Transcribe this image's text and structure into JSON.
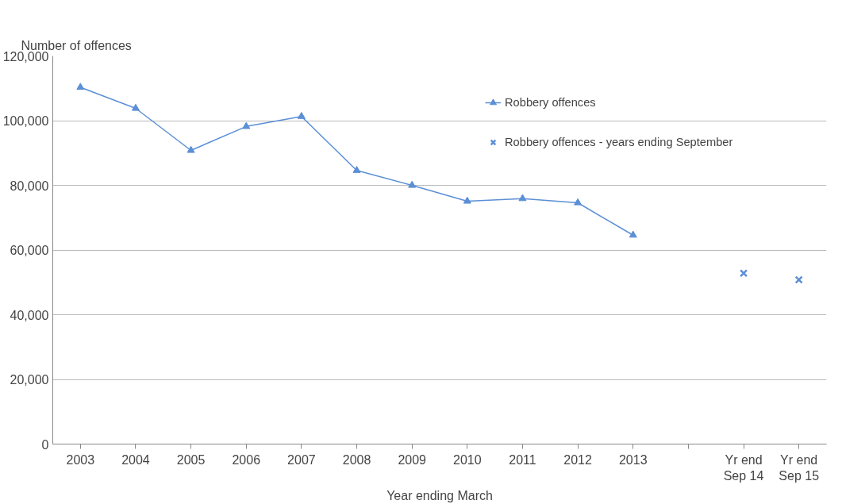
{
  "chart_data": {
    "type": "line",
    "xlabel": "Year ending March",
    "ylabel": "Number of offences",
    "categories": [
      "2003",
      "2004",
      "2005",
      "2006",
      "2007",
      "2008",
      "2009",
      "2010",
      "2011",
      "2012",
      "2013",
      null,
      "Yr end\nSep 14",
      "Yr end\nSep 15"
    ],
    "series": [
      {
        "name": "Robbery offences",
        "color": "#5b8fd6",
        "marker": "triangle",
        "values": [
          110300,
          103800,
          90800,
          98200,
          101300,
          84600,
          80000,
          75100,
          75900,
          74600,
          64600,
          null,
          null,
          null
        ]
      },
      {
        "name": "Robbery offences - years ending September",
        "color": "#5b8fd6",
        "type": "scatter",
        "marker": "cross",
        "values": [
          null,
          null,
          null,
          null,
          null,
          null,
          null,
          null,
          null,
          null,
          null,
          null,
          52800,
          50800
        ]
      }
    ],
    "ylim": [
      0,
      120000
    ],
    "yticks": [
      0,
      {
        "value": 20000,
        "label": "20,000"
      },
      {
        "value": 40000,
        "label": "40,000"
      },
      {
        "value": 60000,
        "label": "60,000"
      },
      {
        "value": 80000,
        "label": "80,000"
      },
      {
        "value": 100000,
        "label": "100,000"
      },
      {
        "value": 120000,
        "label": "120,000"
      }
    ],
    "grid": "y",
    "legend": "top right"
  }
}
